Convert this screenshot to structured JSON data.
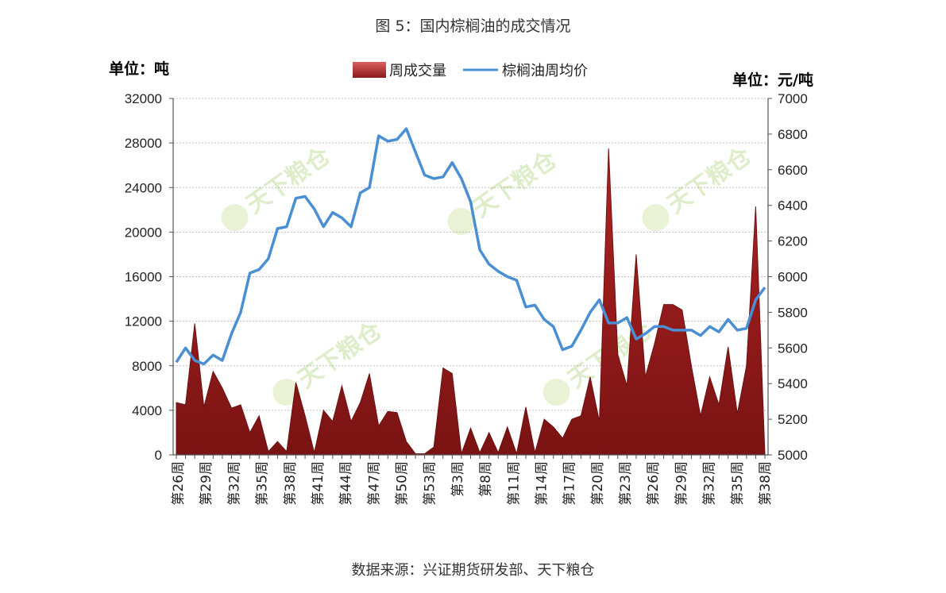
{
  "figure": {
    "title": "图 5：国内棕榈油的成交情况",
    "source": "数据来源：兴证期货研发部、天下粮仓",
    "watermark": "天下粮仓"
  },
  "chart_data": {
    "type": "area+line",
    "left_axis_label": "单位：吨",
    "right_axis_label": "单位：元/吨",
    "y_left": {
      "min": 0,
      "max": 32000,
      "ticks": [
        0,
        4000,
        8000,
        12000,
        16000,
        20000,
        24000,
        28000,
        32000
      ]
    },
    "y_right": {
      "min": 5000,
      "max": 7000,
      "ticks": [
        5000,
        5200,
        5400,
        5600,
        5800,
        6000,
        6200,
        6400,
        6600,
        6800,
        7000
      ]
    },
    "x_tick_labels": [
      "第26周",
      "第29周",
      "第32周",
      "第35周",
      "第38周",
      "第41周",
      "第44周",
      "第47周",
      "第50周",
      "第53周",
      "第3周",
      "第8周",
      "第11周",
      "第14周",
      "第17周",
      "第20周",
      "第23周",
      "第26周",
      "第29周",
      "第32周",
      "第35周",
      "第38周"
    ],
    "grid": true,
    "legend_position": "top",
    "series": [
      {
        "name": "周成交量",
        "axis": "left",
        "kind": "area",
        "color": "#8b1a1a",
        "values": [
          4700,
          4500,
          11800,
          4300,
          7500,
          6000,
          4200,
          4500,
          2000,
          3500,
          300,
          1200,
          300,
          6500,
          3500,
          200,
          4000,
          3000,
          6200,
          3000,
          4700,
          7300,
          2600,
          3900,
          3800,
          1200,
          100,
          100,
          700,
          7800,
          7300,
          100,
          2400,
          200,
          2000,
          200,
          2500,
          100,
          4300,
          200,
          3200,
          2500,
          1500,
          3200,
          3500,
          7000,
          3000,
          27500,
          9000,
          6200,
          18000,
          7000,
          10000,
          13500,
          13500,
          13000,
          8000,
          3500,
          7000,
          4500,
          9700,
          3700,
          8000,
          22300,
          0
        ]
      },
      {
        "name": "棕榈油周均价",
        "axis": "right",
        "kind": "line",
        "color": "#4a8fd4",
        "values": [
          5520,
          5600,
          5530,
          5510,
          5560,
          5530,
          5680,
          5800,
          6020,
          6040,
          6100,
          6270,
          6280,
          6440,
          6450,
          6380,
          6280,
          6360,
          6330,
          6280,
          6470,
          6500,
          6790,
          6760,
          6770,
          6830,
          6700,
          6570,
          6550,
          6560,
          6640,
          6550,
          6420,
          6150,
          6070,
          6030,
          6000,
          5980,
          5830,
          5840,
          5760,
          5720,
          5590,
          5610,
          5700,
          5800,
          5870,
          5740,
          5740,
          5770,
          5650,
          5680,
          5720,
          5720,
          5700,
          5700,
          5700,
          5670,
          5720,
          5690,
          5760,
          5700,
          5710,
          5870,
          5940
        ]
      }
    ]
  }
}
